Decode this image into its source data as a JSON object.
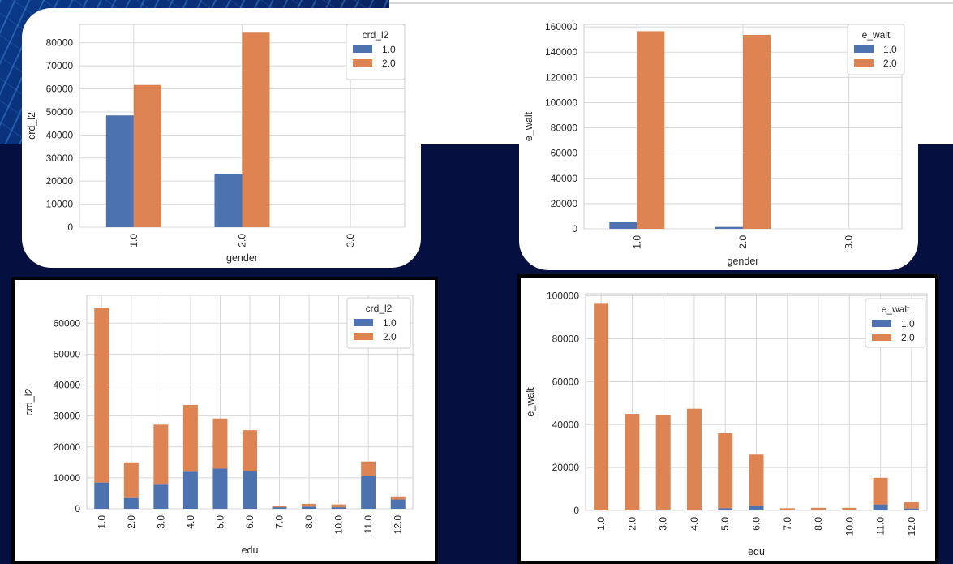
{
  "colors": {
    "series1": "#4c72b0",
    "series2": "#dd8452",
    "grid": "#d8d8d8",
    "background_dark": "#061040"
  },
  "chart_data": [
    {
      "type": "bar",
      "stacked": false,
      "categories": [
        "1.0",
        "2.0",
        "3.0"
      ],
      "series": [
        {
          "name": "1.0",
          "values": [
            48500,
            23200,
            0
          ]
        },
        {
          "name": "2.0",
          "values": [
            61700,
            84400,
            0
          ]
        }
      ],
      "xlabel": "gender",
      "ylabel": "crd_l2",
      "legend_title": "crd_l2",
      "ylim": [
        0,
        88000
      ],
      "yticks": [
        0,
        10000,
        20000,
        30000,
        40000,
        50000,
        60000,
        70000,
        80000
      ],
      "legend_position": "top-right"
    },
    {
      "type": "bar",
      "stacked": false,
      "categories": [
        "1.0",
        "2.0",
        "3.0"
      ],
      "series": [
        {
          "name": "1.0",
          "values": [
            5800,
            1500,
            0
          ]
        },
        {
          "name": "2.0",
          "values": [
            156600,
            153700,
            0
          ]
        }
      ],
      "xlabel": "gender",
      "ylabel": "e_walt",
      "legend_title": "e_walt",
      "ylim": [
        0,
        162000
      ],
      "yticks": [
        0,
        20000,
        40000,
        60000,
        80000,
        100000,
        120000,
        140000,
        160000
      ],
      "legend_position": "top-right"
    },
    {
      "type": "bar",
      "stacked": true,
      "categories": [
        "1.0",
        "2.0",
        "3.0",
        "4.0",
        "5.0",
        "6.0",
        "7.0",
        "8.0",
        "10.0",
        "11.0",
        "12.0"
      ],
      "series": [
        {
          "name": "1.0",
          "values": [
            8500,
            3500,
            7800,
            12000,
            13000,
            12300,
            500,
            700,
            500,
            10500,
            3000
          ]
        },
        {
          "name": "2.0",
          "values": [
            56500,
            11500,
            19400,
            21600,
            16200,
            13100,
            300,
            900,
            900,
            4800,
            1000
          ]
        }
      ],
      "xlabel": "edu",
      "ylabel": "crd_l2",
      "legend_title": "crd_l2",
      "ylim": [
        0,
        69000
      ],
      "yticks": [
        0,
        10000,
        20000,
        30000,
        40000,
        50000,
        60000
      ],
      "legend_position": "top-right"
    },
    {
      "type": "bar",
      "stacked": true,
      "categories": [
        "1.0",
        "2.0",
        "3.0",
        "4.0",
        "5.0",
        "6.0",
        "7.0",
        "8.0",
        "10.0",
        "11.0",
        "12.0"
      ],
      "series": [
        {
          "name": "1.0",
          "values": [
            200,
            200,
            400,
            400,
            1000,
            2000,
            100,
            100,
            100,
            2800,
            900
          ]
        },
        {
          "name": "2.0",
          "values": [
            96500,
            44800,
            44000,
            47000,
            35000,
            24000,
            900,
            1100,
            1100,
            12400,
            3100
          ]
        }
      ],
      "xlabel": "edu",
      "ylabel": "e_walt",
      "legend_title": "e_walt",
      "ylim": [
        0,
        101000
      ],
      "yticks": [
        0,
        20000,
        40000,
        60000,
        80000,
        100000
      ],
      "legend_position": "top-right"
    }
  ]
}
